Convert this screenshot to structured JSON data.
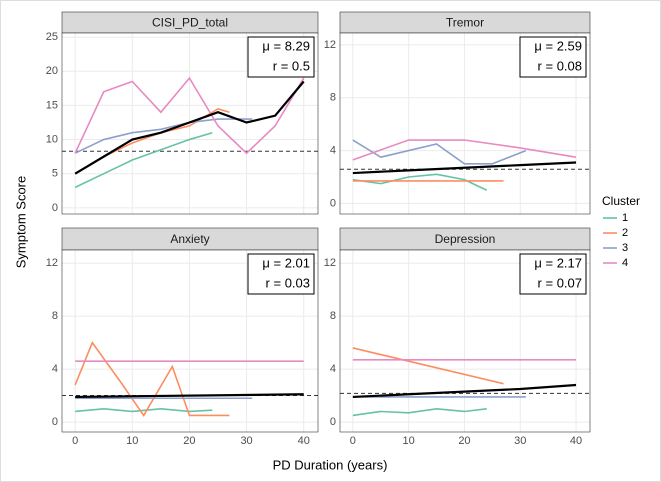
{
  "x_label": "PD Duration (years)",
  "y_label": "Symptom Score",
  "legend_title": "Cluster",
  "chart_data": [
    {
      "type": "line",
      "title": "CISI_PD_total",
      "xlim": [
        -2.3,
        42.5
      ],
      "xticks": [
        0,
        10,
        20,
        30,
        40
      ],
      "ylim": [
        -0.9,
        25.6
      ],
      "yticks": [
        0,
        5,
        10,
        15,
        20,
        25
      ],
      "mean": 8.29,
      "annotations": [
        "μ = 8.29",
        "r = 0.5"
      ],
      "series": [
        {
          "name": "1",
          "color": "#66c2a5",
          "x": [
            0,
            5,
            10,
            15,
            20,
            24
          ],
          "values": [
            3,
            5,
            7,
            8.5,
            10,
            11
          ]
        },
        {
          "name": "2",
          "color": "#fc8d62",
          "x": [
            0,
            5,
            10,
            15,
            20,
            25,
            27
          ],
          "values": [
            5,
            7.5,
            9.5,
            11,
            12,
            14.5,
            14
          ]
        },
        {
          "name": "3",
          "color": "#8da0cb",
          "x": [
            0,
            5,
            10,
            15,
            20,
            25,
            31
          ],
          "values": [
            8,
            10,
            11,
            11.5,
            12.5,
            13,
            13
          ]
        },
        {
          "name": "4",
          "color": "#e78ac3",
          "x": [
            0,
            5,
            10,
            15,
            20,
            25,
            30,
            35,
            40
          ],
          "values": [
            8,
            17,
            18.5,
            14,
            19,
            12,
            8,
            12,
            19
          ]
        },
        {
          "color": "#000000",
          "x": [
            0,
            5,
            10,
            15,
            20,
            25,
            30,
            35,
            40
          ],
          "values": [
            5,
            7.5,
            10,
            11,
            12.5,
            14,
            12.5,
            13.5,
            18.5
          ]
        }
      ]
    },
    {
      "type": "line",
      "title": "Tremor",
      "xlim": [
        -2.3,
        42.5
      ],
      "xticks": [
        0,
        10,
        20,
        30,
        40
      ],
      "ylim": [
        -0.8,
        12.9
      ],
      "yticks": [
        0,
        4,
        8,
        12
      ],
      "mean": 2.59,
      "annotations": [
        "μ = 2.59",
        "r = 0.08"
      ],
      "series": [
        {
          "name": "1",
          "color": "#66c2a5",
          "x": [
            0,
            5,
            10,
            15,
            20,
            24
          ],
          "values": [
            1.8,
            1.5,
            2,
            2.2,
            1.8,
            1
          ]
        },
        {
          "name": "2",
          "color": "#fc8d62",
          "x": [
            0,
            27
          ],
          "values": [
            1.7,
            1.7
          ]
        },
        {
          "name": "3",
          "color": "#8da0cb",
          "x": [
            0,
            5,
            10,
            15,
            20,
            25,
            31
          ],
          "values": [
            4.8,
            3.5,
            4,
            4.5,
            3,
            3,
            4
          ]
        },
        {
          "name": "4",
          "color": "#e78ac3",
          "x": [
            0,
            10,
            20,
            30,
            40
          ],
          "values": [
            3.3,
            4.8,
            4.8,
            4.2,
            3.5
          ]
        },
        {
          "color": "#000000",
          "x": [
            0,
            10,
            20,
            30,
            40
          ],
          "values": [
            2.3,
            2.5,
            2.7,
            2.9,
            3.1
          ]
        }
      ]
    },
    {
      "type": "line",
      "title": "Anxiety",
      "xlim": [
        -2.3,
        42.5
      ],
      "xticks": [
        0,
        10,
        20,
        30,
        40
      ],
      "ylim": [
        -0.75,
        13
      ],
      "yticks": [
        0,
        4,
        8,
        12
      ],
      "mean": 2.01,
      "annotations": [
        "μ = 2.01",
        "r = 0.03"
      ],
      "series": [
        {
          "name": "1",
          "color": "#66c2a5",
          "x": [
            0,
            5,
            10,
            15,
            20,
            24
          ],
          "values": [
            0.8,
            1,
            0.8,
            1,
            0.8,
            0.9
          ]
        },
        {
          "name": "2",
          "color": "#fc8d62",
          "x": [
            0,
            3,
            8,
            12,
            17,
            20,
            27
          ],
          "values": [
            2.8,
            6,
            3,
            0.5,
            4.2,
            0.5,
            0.5
          ]
        },
        {
          "name": "3",
          "color": "#8da0cb",
          "x": [
            0,
            31
          ],
          "values": [
            1.8,
            1.8
          ]
        },
        {
          "name": "4",
          "color": "#e78ac3",
          "x": [
            0,
            40
          ],
          "values": [
            4.6,
            4.6
          ]
        },
        {
          "color": "#000000",
          "x": [
            0,
            40
          ],
          "values": [
            1.9,
            2.1
          ]
        }
      ]
    },
    {
      "type": "line",
      "title": "Depression",
      "xlim": [
        -2.3,
        42.5
      ],
      "xticks": [
        0,
        10,
        20,
        30,
        40
      ],
      "ylim": [
        -0.75,
        13
      ],
      "yticks": [
        0,
        4,
        8,
        12
      ],
      "mean": 2.17,
      "annotations": [
        "μ = 2.17",
        "r = 0.07"
      ],
      "series": [
        {
          "name": "1",
          "color": "#66c2a5",
          "x": [
            0,
            5,
            10,
            15,
            20,
            24
          ],
          "values": [
            0.5,
            0.8,
            0.7,
            1,
            0.8,
            1
          ]
        },
        {
          "name": "2",
          "color": "#fc8d62",
          "x": [
            0,
            27
          ],
          "values": [
            5.6,
            2.9
          ]
        },
        {
          "name": "3",
          "color": "#8da0cb",
          "x": [
            0,
            31
          ],
          "values": [
            1.9,
            1.9
          ]
        },
        {
          "name": "4",
          "color": "#e78ac3",
          "x": [
            0,
            40
          ],
          "values": [
            4.7,
            4.7
          ]
        },
        {
          "color": "#000000",
          "x": [
            0,
            10,
            20,
            30,
            40
          ],
          "values": [
            1.9,
            2.1,
            2.3,
            2.5,
            2.8
          ]
        }
      ]
    }
  ]
}
